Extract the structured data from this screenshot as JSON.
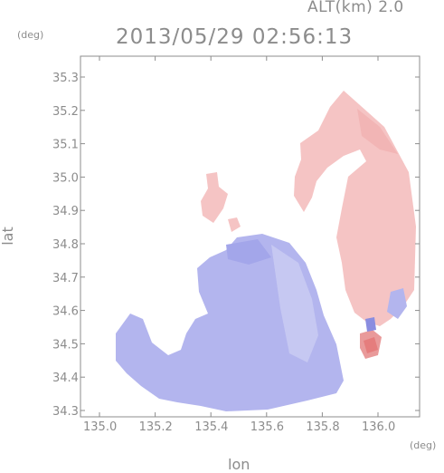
{
  "header": {
    "altitude": "ALT(km) 2.0",
    "timestamp": "2013/05/29 02:56:13"
  },
  "axes": {
    "y_unit": "(deg)",
    "x_unit": "(deg)",
    "y_label": "lat",
    "x_label": "lon",
    "y_ticks": [
      "35.3",
      "35.2",
      "35.1",
      "35.0",
      "34.9",
      "34.8",
      "34.7",
      "34.6",
      "34.5",
      "34.4",
      "34.3"
    ],
    "x_ticks": [
      "135.0",
      "135.2",
      "135.4",
      "135.6",
      "135.8",
      "136.0"
    ]
  },
  "colors": {
    "axis": "#8c8c8c",
    "approaching": "#b3b5ee",
    "receding": "#f5c4c4",
    "strong_receding": "#e57d7d",
    "strong_approaching": "#8a8de0"
  }
}
